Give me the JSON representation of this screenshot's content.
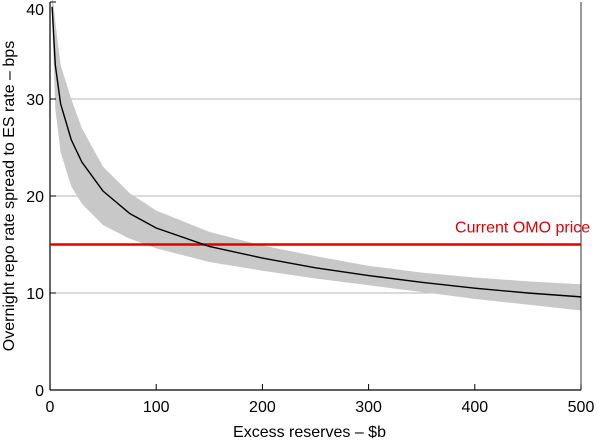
{
  "chart_data": {
    "type": "line",
    "title": "",
    "xlabel": "Excess reserves – $b",
    "ylabel": "Overnight repo rate spread to ES rate – bps",
    "xlim": [
      0,
      500
    ],
    "ylim": [
      0,
      40
    ],
    "x_ticks": [
      0,
      100,
      200,
      300,
      400,
      500
    ],
    "y_ticks": [
      0,
      10,
      20,
      30,
      40
    ],
    "grid": "horizontal",
    "series": [
      {
        "role": "central-estimate",
        "color": "#000000",
        "x": [
          2,
          5,
          10,
          20,
          30,
          50,
          75,
          100,
          150,
          200,
          250,
          300,
          350,
          400,
          450,
          500
        ],
        "y": [
          39.5,
          33.5,
          29.5,
          25.8,
          23.5,
          20.5,
          18.2,
          16.7,
          14.8,
          13.6,
          12.6,
          11.8,
          11.1,
          10.5,
          10.0,
          9.6
        ]
      }
    ],
    "confidence_band": {
      "color": "#c8c8c8",
      "x": [
        2,
        5,
        10,
        20,
        30,
        50,
        75,
        100,
        150,
        200,
        250,
        300,
        350,
        400,
        450,
        500
      ],
      "lower": [
        38.0,
        29.0,
        24.5,
        21.0,
        19.2,
        17.0,
        15.6,
        14.6,
        13.2,
        12.3,
        11.5,
        10.8,
        10.1,
        9.4,
        8.8,
        8.2
      ],
      "upper": [
        41.0,
        38.0,
        33.5,
        30.0,
        27.0,
        23.0,
        20.3,
        18.5,
        16.3,
        14.9,
        13.8,
        12.8,
        12.1,
        11.6,
        11.2,
        10.9
      ]
    },
    "reference_line": {
      "y": 15,
      "label": "Current OMO price",
      "color": "#e00000"
    }
  }
}
